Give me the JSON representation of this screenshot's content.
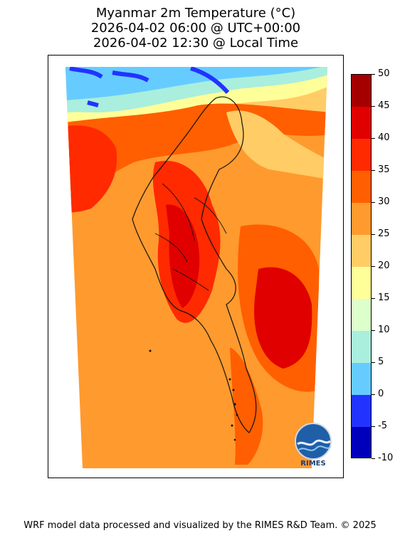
{
  "title": {
    "line1": "Myanmar 2m Temperature (°C)",
    "line2": "2026-04-02 06:00 @ UTC+00:00",
    "line3": "2026-04-02 12:30 @ Local Time"
  },
  "colorbar": {
    "ticks": [
      "50",
      "45",
      "40",
      "35",
      "30",
      "25",
      "20",
      "15",
      "10",
      "5",
      "0",
      "-5",
      "-10"
    ],
    "levels": [
      {
        "range": "45-50",
        "color": "#a50000"
      },
      {
        "range": "40-45",
        "color": "#e00000"
      },
      {
        "range": "35-40",
        "color": "#ff2a00"
      },
      {
        "range": "30-35",
        "color": "#ff5f00"
      },
      {
        "range": "25-30",
        "color": "#ff9a2e"
      },
      {
        "range": "20-25",
        "color": "#ffcc66"
      },
      {
        "range": "15-20",
        "color": "#ffff99"
      },
      {
        "range": "10-15",
        "color": "#ddffcc"
      },
      {
        "range": "5-10",
        "color": "#aaeedd"
      },
      {
        "range": "0-5",
        "color": "#66ccff"
      },
      {
        "range": "-5-0",
        "color": "#2233ff"
      },
      {
        "range": "-10--5",
        "color": "#0000bb"
      }
    ]
  },
  "logo": {
    "text": "RIMES"
  },
  "footer": "WRF model data processed and visualized by the RIMES R&D Team. © 2025"
}
